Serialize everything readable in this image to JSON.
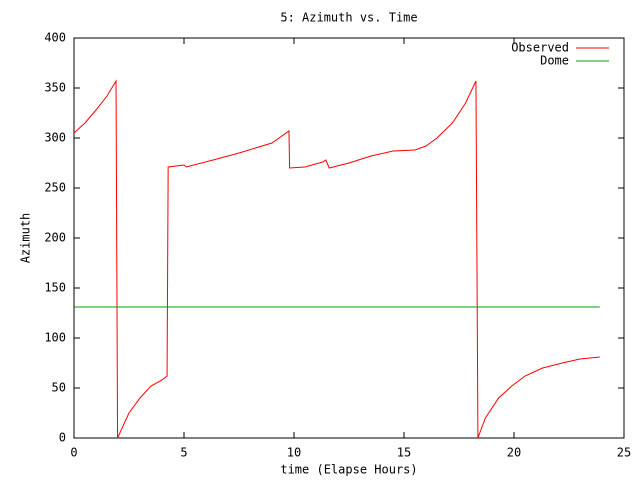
{
  "chart_data": {
    "type": "line",
    "title": "5: Azimuth vs. Time",
    "x_label": "time (Elapse Hours)",
    "y_label": "Azimuth",
    "xlim": [
      0,
      25
    ],
    "ylim": [
      0,
      400
    ],
    "xticks": [
      0,
      5,
      10,
      15,
      20,
      25
    ],
    "yticks": [
      0,
      50,
      100,
      150,
      200,
      250,
      300,
      350,
      400
    ],
    "legend": "top-right",
    "grid": false,
    "series": [
      {
        "name": "Observed",
        "color": "#ff0000",
        "x": [
          0,
          0.5,
          1.0,
          1.5,
          1.91,
          1.98,
          2.5,
          3.0,
          3.5,
          4.0,
          4.23,
          4.28,
          5.0,
          5.1,
          6.5,
          7.5,
          9.0,
          9.77,
          9.8,
          10.5,
          11.3,
          11.45,
          11.6,
          12.5,
          13.5,
          14.5,
          15.5,
          16.0,
          16.5,
          17.2,
          17.8,
          18.27,
          18.36,
          18.7,
          19.3,
          19.9,
          20.5,
          21.3,
          22.2,
          23.0,
          23.9
        ],
        "values": [
          305,
          315,
          328,
          342,
          357,
          0,
          25,
          40,
          52,
          58,
          62,
          271,
          273,
          271,
          279,
          285,
          295,
          307,
          270,
          271,
          276,
          278,
          270,
          275,
          282,
          287,
          288,
          292,
          300,
          315,
          335,
          357,
          0,
          20,
          40,
          52,
          62,
          70,
          75,
          79,
          81
        ]
      },
      {
        "name": "Dome",
        "color": "#00a000",
        "x": [
          0,
          23.9
        ],
        "values": [
          131,
          131
        ]
      }
    ]
  }
}
